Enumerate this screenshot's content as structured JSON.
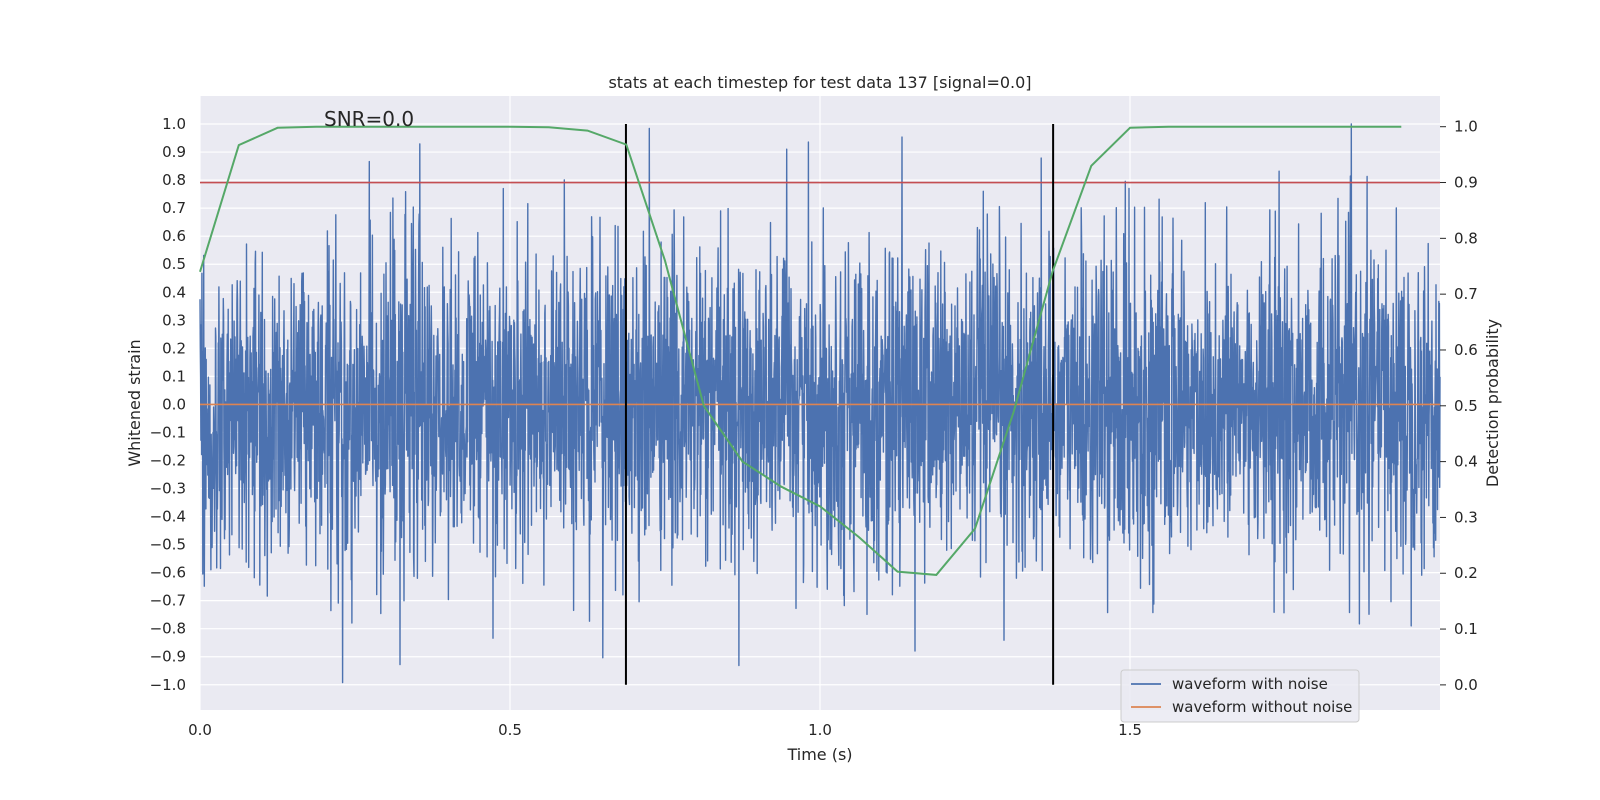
{
  "chart_data": {
    "type": "line",
    "title": "stats at each timestep for test data 137 [signal=0.0]",
    "xlabel": "Time (s)",
    "ylabel": "Whitened strain",
    "y2label": "Detection probability",
    "xlim": [
      0.0,
      2.0
    ],
    "ylim": [
      -1.09,
      1.1
    ],
    "y2lim": [
      -0.045,
      1.055
    ],
    "x_ticks": [
      0.0,
      0.5,
      1.0,
      1.5
    ],
    "x_tick_labels": [
      "0.0",
      "0.5",
      "1.0",
      "1.5"
    ],
    "y_ticks": [
      1.0,
      0.9,
      0.8,
      0.7,
      0.6,
      0.5,
      0.4,
      0.3,
      0.2,
      0.1,
      0.0,
      -0.1,
      -0.2,
      -0.3,
      -0.4,
      -0.5,
      -0.6,
      -0.7,
      -0.8,
      -0.9,
      -1.0
    ],
    "y_tick_labels": [
      "1.0",
      "0.9",
      "0.8",
      "0.7",
      "0.6",
      "0.5",
      "0.4",
      "0.3",
      "0.2",
      "0.1",
      "0.0",
      "−0.1",
      "−0.2",
      "−0.3",
      "−0.4",
      "−0.5",
      "−0.6",
      "−0.7",
      "−0.8",
      "−0.9",
      "−1.0"
    ],
    "y2_ticks": [
      1.0,
      0.9,
      0.8,
      0.7,
      0.6,
      0.5,
      0.4,
      0.3,
      0.2,
      0.1,
      0.0
    ],
    "y2_tick_labels": [
      "1.0",
      "0.9",
      "0.8",
      "0.7",
      "0.6",
      "0.5",
      "0.4",
      "0.3",
      "0.2",
      "0.1",
      "0.0"
    ],
    "grid": true,
    "annotation": "SNR=0.0",
    "annotation_position": {
      "x": 0.2,
      "y": 1.0
    },
    "threshold": {
      "value": 0.9,
      "axis": "y2",
      "color": "#c44e52"
    },
    "vertical_lines": [
      0.687,
      1.376
    ],
    "vertical_line_range": [
      -1.0,
      1.0
    ],
    "series": [
      {
        "name": "waveform with noise",
        "axis": "y",
        "color": "#4c72b0",
        "sample_count": 4000,
        "range": [
          -1.0,
          1.0
        ],
        "note": "dense whitened-noise trace; individual samples not legible"
      },
      {
        "name": "waveform without noise",
        "axis": "y",
        "color": "#dd8452",
        "x": [
          0.0,
          2.0
        ],
        "values": [
          0.0,
          0.0
        ]
      },
      {
        "name": "detection probability",
        "axis": "y2",
        "color": "#55a868",
        "show_in_legend": false,
        "x": [
          0.0,
          0.0625,
          0.125,
          0.1875,
          0.25,
          0.3125,
          0.375,
          0.4375,
          0.5,
          0.5625,
          0.625,
          0.6875,
          0.75,
          0.8125,
          0.875,
          0.9375,
          1.0,
          1.0625,
          1.125,
          1.1875,
          1.25,
          1.3125,
          1.375,
          1.4375,
          1.5,
          1.5625,
          1.625,
          1.6875,
          1.75,
          1.8125,
          1.875,
          1.9375
        ],
        "values": [
          0.74,
          0.967,
          0.998,
          1.0,
          1.0,
          1.0,
          1.0,
          1.0,
          1.0,
          0.999,
          0.993,
          0.968,
          0.76,
          0.5,
          0.4,
          0.355,
          0.32,
          0.265,
          0.203,
          0.197,
          0.28,
          0.49,
          0.74,
          0.93,
          0.998,
          1.0,
          1.0,
          1.0,
          1.0,
          1.0,
          1.0,
          1.0
        ]
      }
    ],
    "legend": {
      "position": "lower-right",
      "entries": [
        "waveform with noise",
        "waveform without noise"
      ]
    }
  },
  "colors": {
    "axes_face": "#eaeaf2",
    "grid": "#ffffff",
    "vertical_line": "#000000",
    "text": "#262626"
  }
}
